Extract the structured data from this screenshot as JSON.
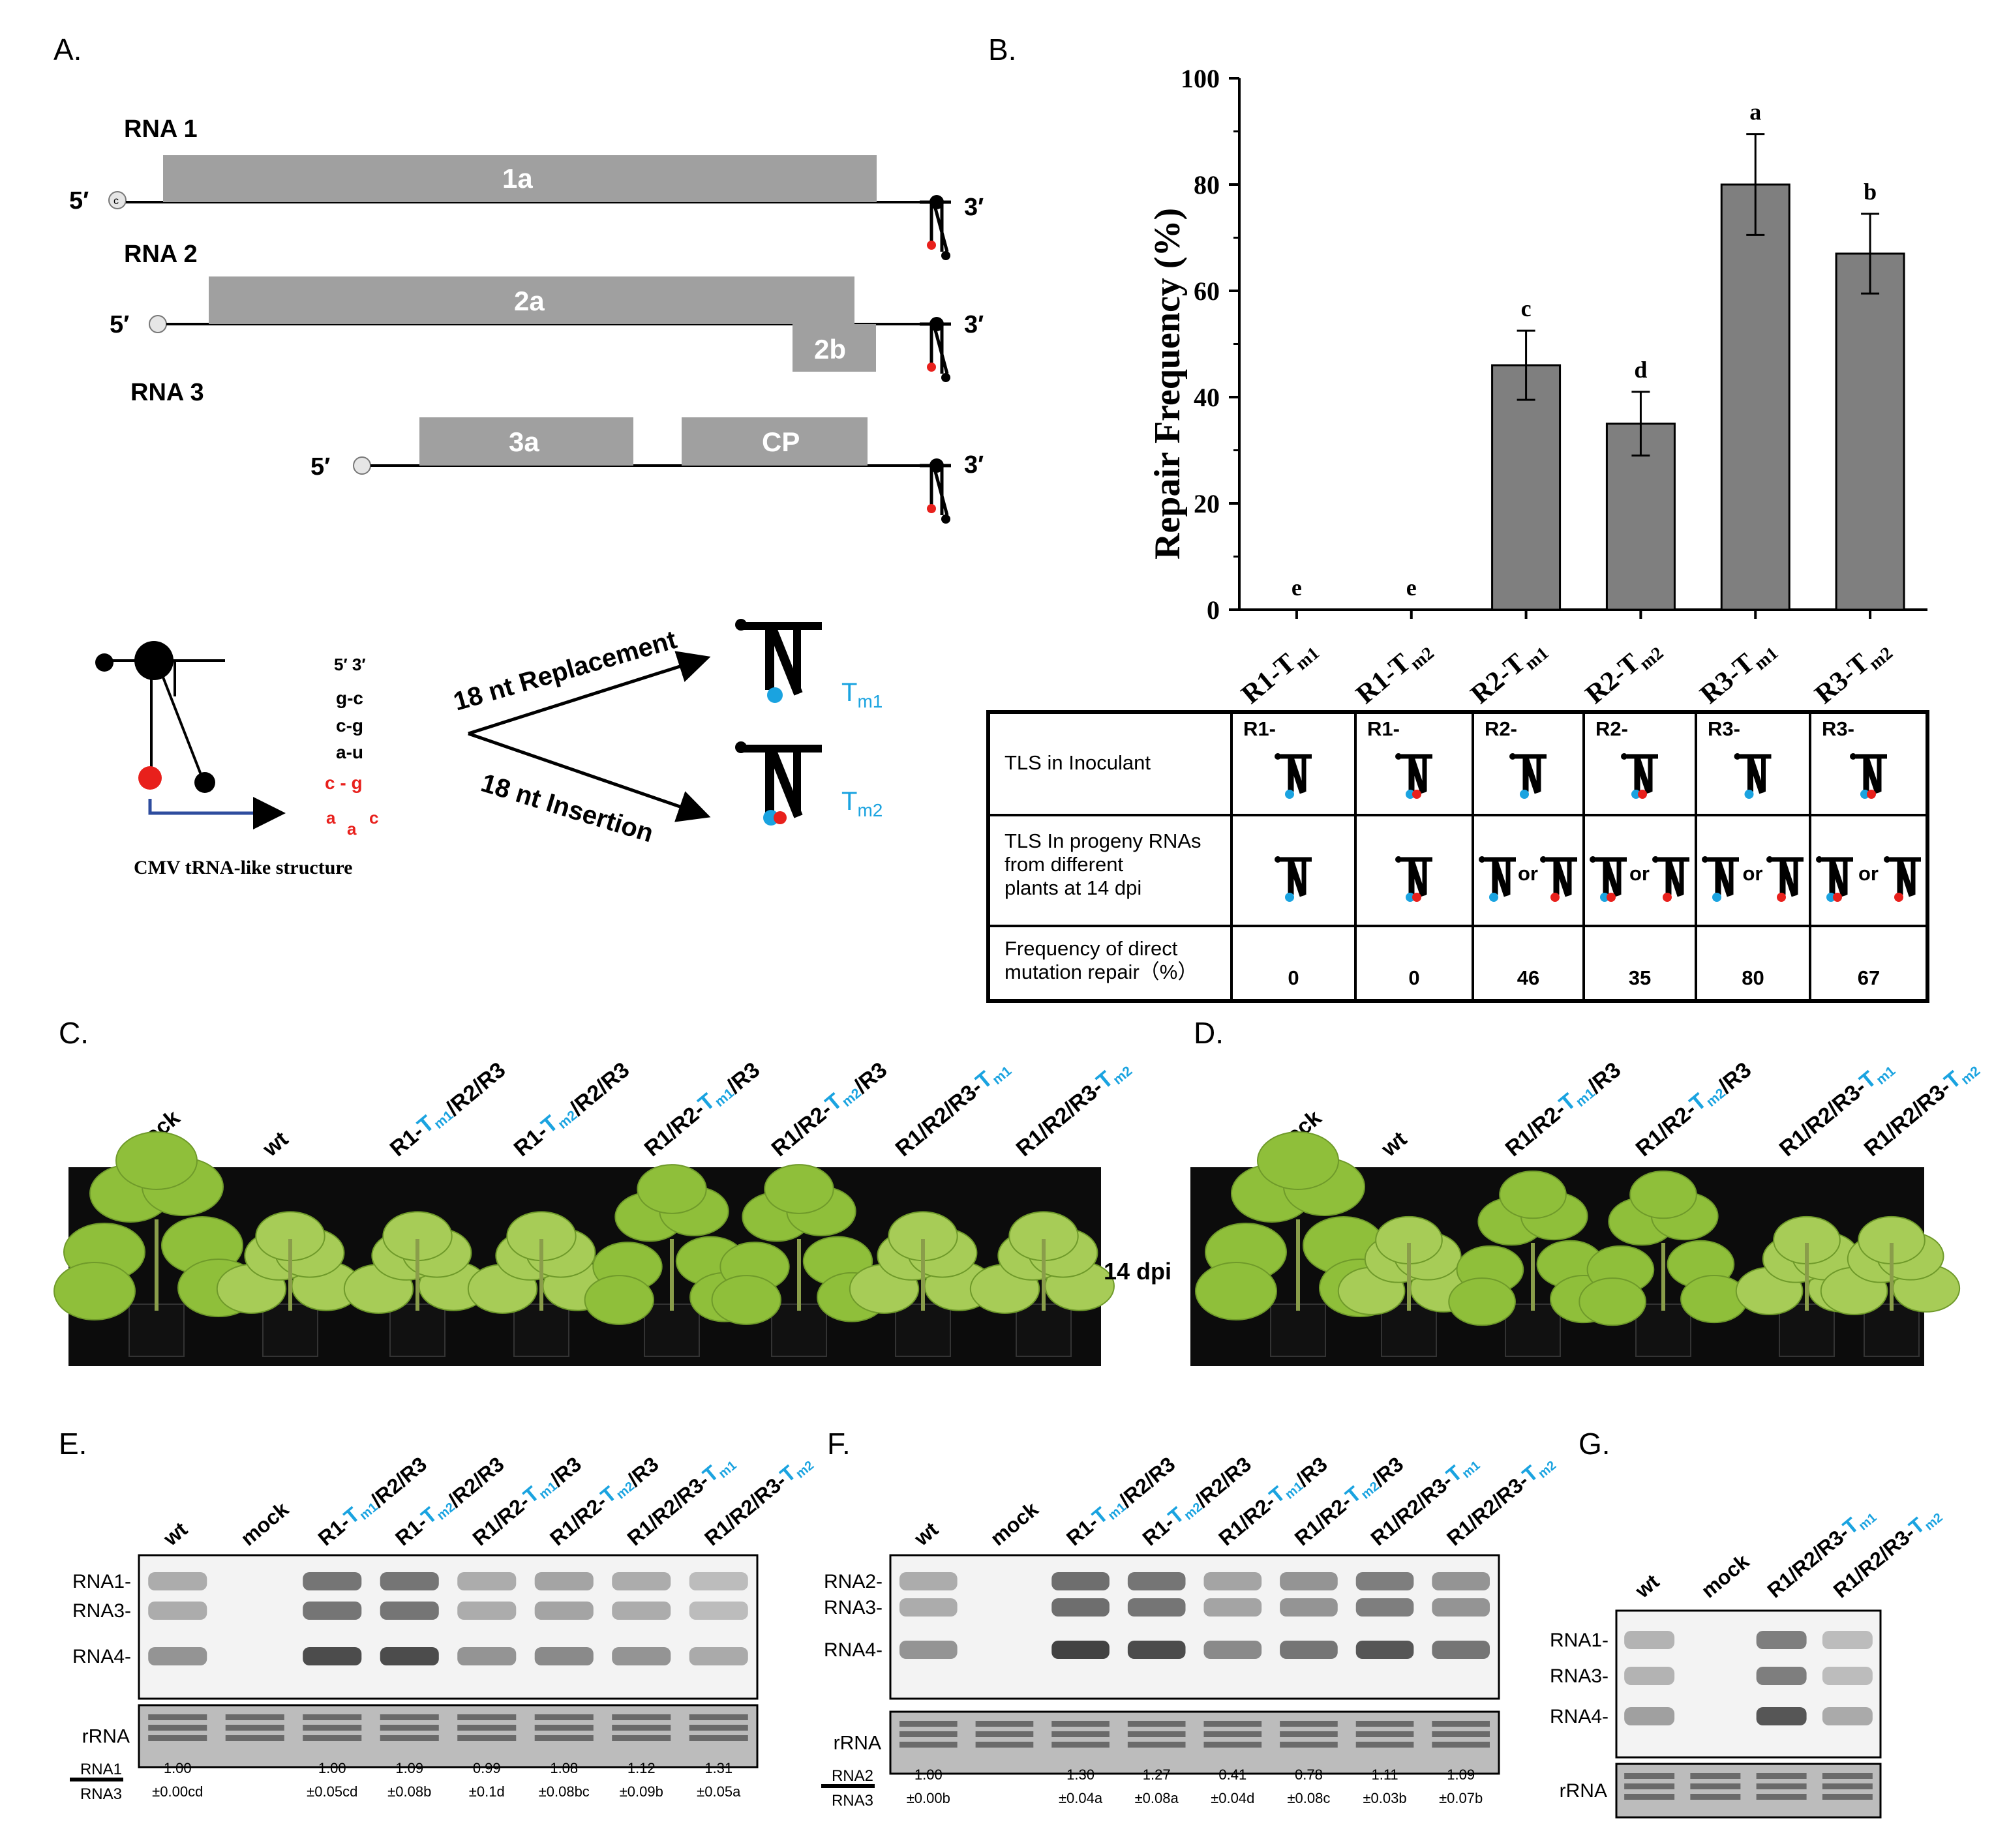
{
  "panels": {
    "A": "A.",
    "B": "B.",
    "C": "C.",
    "D": "D.",
    "E": "E.",
    "F": "F.",
    "G": "G."
  },
  "panel_a": {
    "rna_labels": [
      "RNA 1",
      "RNA 2",
      "RNA 3"
    ],
    "five_prime": "5′",
    "three_prime": "3′",
    "cap": "c",
    "orfs": {
      "1a": "1a",
      "2a": "2a",
      "2b": "2b",
      "3a": "3a",
      "cp": "CP"
    },
    "pairs_header": "5′ 3′",
    "pairs": [
      "g-c",
      "c-g",
      "a-u"
    ],
    "pairs_red": [
      "c - g",
      "a",
      "a",
      "c"
    ],
    "tls_caption": "CMV tRNA-like structure",
    "replacement": "18 nt Replacement",
    "insertion": "18 nt Insertion",
    "tm1": {
      "base": "T",
      "sub": "m1"
    },
    "tm2": {
      "base": "T",
      "sub": "m2"
    }
  },
  "chart_data": {
    "type": "bar",
    "title": "",
    "ylabel": "Repair Frequency (%)",
    "xlabel": "",
    "ylim": [
      0,
      100
    ],
    "yticks": [
      0,
      20,
      40,
      60,
      80,
      100
    ],
    "categories": [
      {
        "base": "R1-T",
        "sub": "m1"
      },
      {
        "base": "R1-T",
        "sub": "m2"
      },
      {
        "base": "R2-T",
        "sub": "m1"
      },
      {
        "base": "R2-T",
        "sub": "m2"
      },
      {
        "base": "R3-T",
        "sub": "m1"
      },
      {
        "base": "R3-T",
        "sub": "m2"
      }
    ],
    "values": [
      0,
      0,
      46,
      35,
      80,
      67
    ],
    "errors": [
      0,
      0,
      6.5,
      6,
      9.5,
      7.5
    ],
    "letters": [
      "e",
      "e",
      "c",
      "d",
      "a",
      "b"
    ],
    "bar_color": "#7f7f7f"
  },
  "table": {
    "row_labels": [
      "TLS in Inoculant",
      "TLS  In progeny RNAs|from different|plants at 14 dpi",
      "Frequency of direct|mutation repair（%）"
    ],
    "col_prefix": [
      "R1-",
      "R1-",
      "R2-",
      "R2-",
      "R3-",
      "R3-"
    ],
    "or": "or",
    "frequencies": [
      "0",
      "0",
      "46",
      "35",
      "80",
      "67"
    ]
  },
  "panel_c": {
    "labels": [
      "mock",
      "wt",
      "R1-Tm1/R2/R3",
      "R1-Tm2/R2/R3",
      "R1/R2-Tm1/R3",
      "R1/R2-Tm2/R3",
      "R1/R2/R3-Tm1",
      "R1/R2/R3-Tm2"
    ],
    "dpi": "14 dpi"
  },
  "panel_d": {
    "labels": [
      "mock",
      "wt",
      "R1/R2-Tm1/R3",
      "R1/R2-Tm2/R3",
      "R1/R2/R3-Tm1",
      "R1/R2/R3-Tm2"
    ]
  },
  "panel_e": {
    "lanes": [
      "wt",
      "mock",
      "R1-Tm1/R2/R3",
      "R1-Tm2/R2/R3",
      "R1/R2-Tm1/R3",
      "R1/R2-Tm2/R3",
      "R1/R2/R3-Tm1",
      "R1/R2/R3-Tm2"
    ],
    "band_labels": [
      "RNA1-",
      "RNA3-",
      "RNA4-"
    ],
    "rrna": "rRNA",
    "ratio_num": "RNA1",
    "ratio_den": "RNA3",
    "ratios": [
      "1.00|±0.00cd",
      "",
      "1.00|±0.05cd",
      "1.09|±0.08b",
      "0.99|±0.1d",
      "1.08|±0.08bc",
      "1.12|±0.09b",
      "1.31|±0.05a"
    ]
  },
  "panel_f": {
    "lanes": [
      "wt",
      "mock",
      "R1-Tm1/R2/R3",
      "R1-Tm2/R2/R3",
      "R1/R2-Tm1/R3",
      "R1/R2-Tm2/R3",
      "R1/R2/R3-Tm1",
      "R1/R2/R3-Tm2"
    ],
    "band_labels": [
      "RNA2-",
      "RNA3-",
      "RNA4-"
    ],
    "rrna": "rRNA",
    "ratio_num": "RNA2",
    "ratio_den": "RNA3",
    "ratios": [
      "1.00|±0.00b",
      "",
      "1.30|±0.04a",
      "1.27|±0.08a",
      "0.41|±0.04d",
      "0.78|±0.08c",
      "1.11|±0.03b",
      "1.09|±0.07b"
    ]
  },
  "panel_g": {
    "lanes": [
      "wt",
      "mock",
      "R1/R2/R3-Tm1",
      "R1/R2/R3-Tm2"
    ],
    "band_labels": [
      "RNA1-",
      "RNA3-",
      "RNA4-"
    ],
    "rrna": "rRNA"
  },
  "colors": {
    "blue": "#1aa3e0",
    "red": "#e8201c",
    "bar": "#7f7f7f",
    "box": "#a0a0a0"
  }
}
